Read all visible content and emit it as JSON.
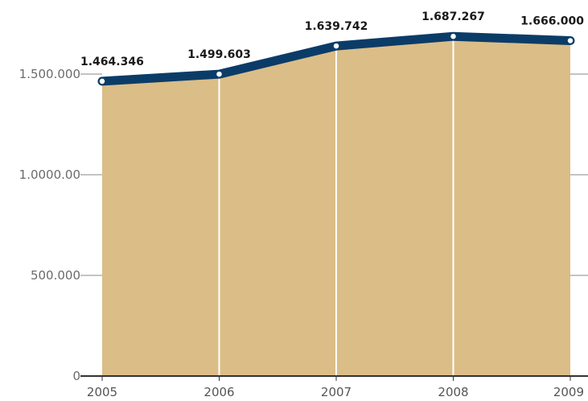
{
  "chart_data": {
    "type": "area",
    "title": "",
    "xlabel": "",
    "ylabel": "",
    "categories": [
      "2005",
      "2006",
      "2007",
      "2008",
      "2009"
    ],
    "values": [
      1464346,
      1499603,
      1639742,
      1687267,
      1666000
    ],
    "data_labels": [
      "1.464.346",
      "1.499.603",
      "1.639.742",
      "1.687.267",
      "1.666.000"
    ],
    "y_ticks": [
      {
        "value": 0,
        "label": "0"
      },
      {
        "value": 500000,
        "label": "500.000"
      },
      {
        "value": 1000000,
        "label": "1.0000.00"
      },
      {
        "value": 1500000,
        "label": "1.500.000"
      }
    ],
    "ylim": [
      0,
      1700000
    ],
    "grid": false,
    "colors": {
      "fill": "#dbbd87",
      "line": "#0b3c68",
      "marker_fill": "#ffffff",
      "axis": "#333333",
      "tick": "#8a8a8a",
      "divider": "#ffffff"
    }
  }
}
